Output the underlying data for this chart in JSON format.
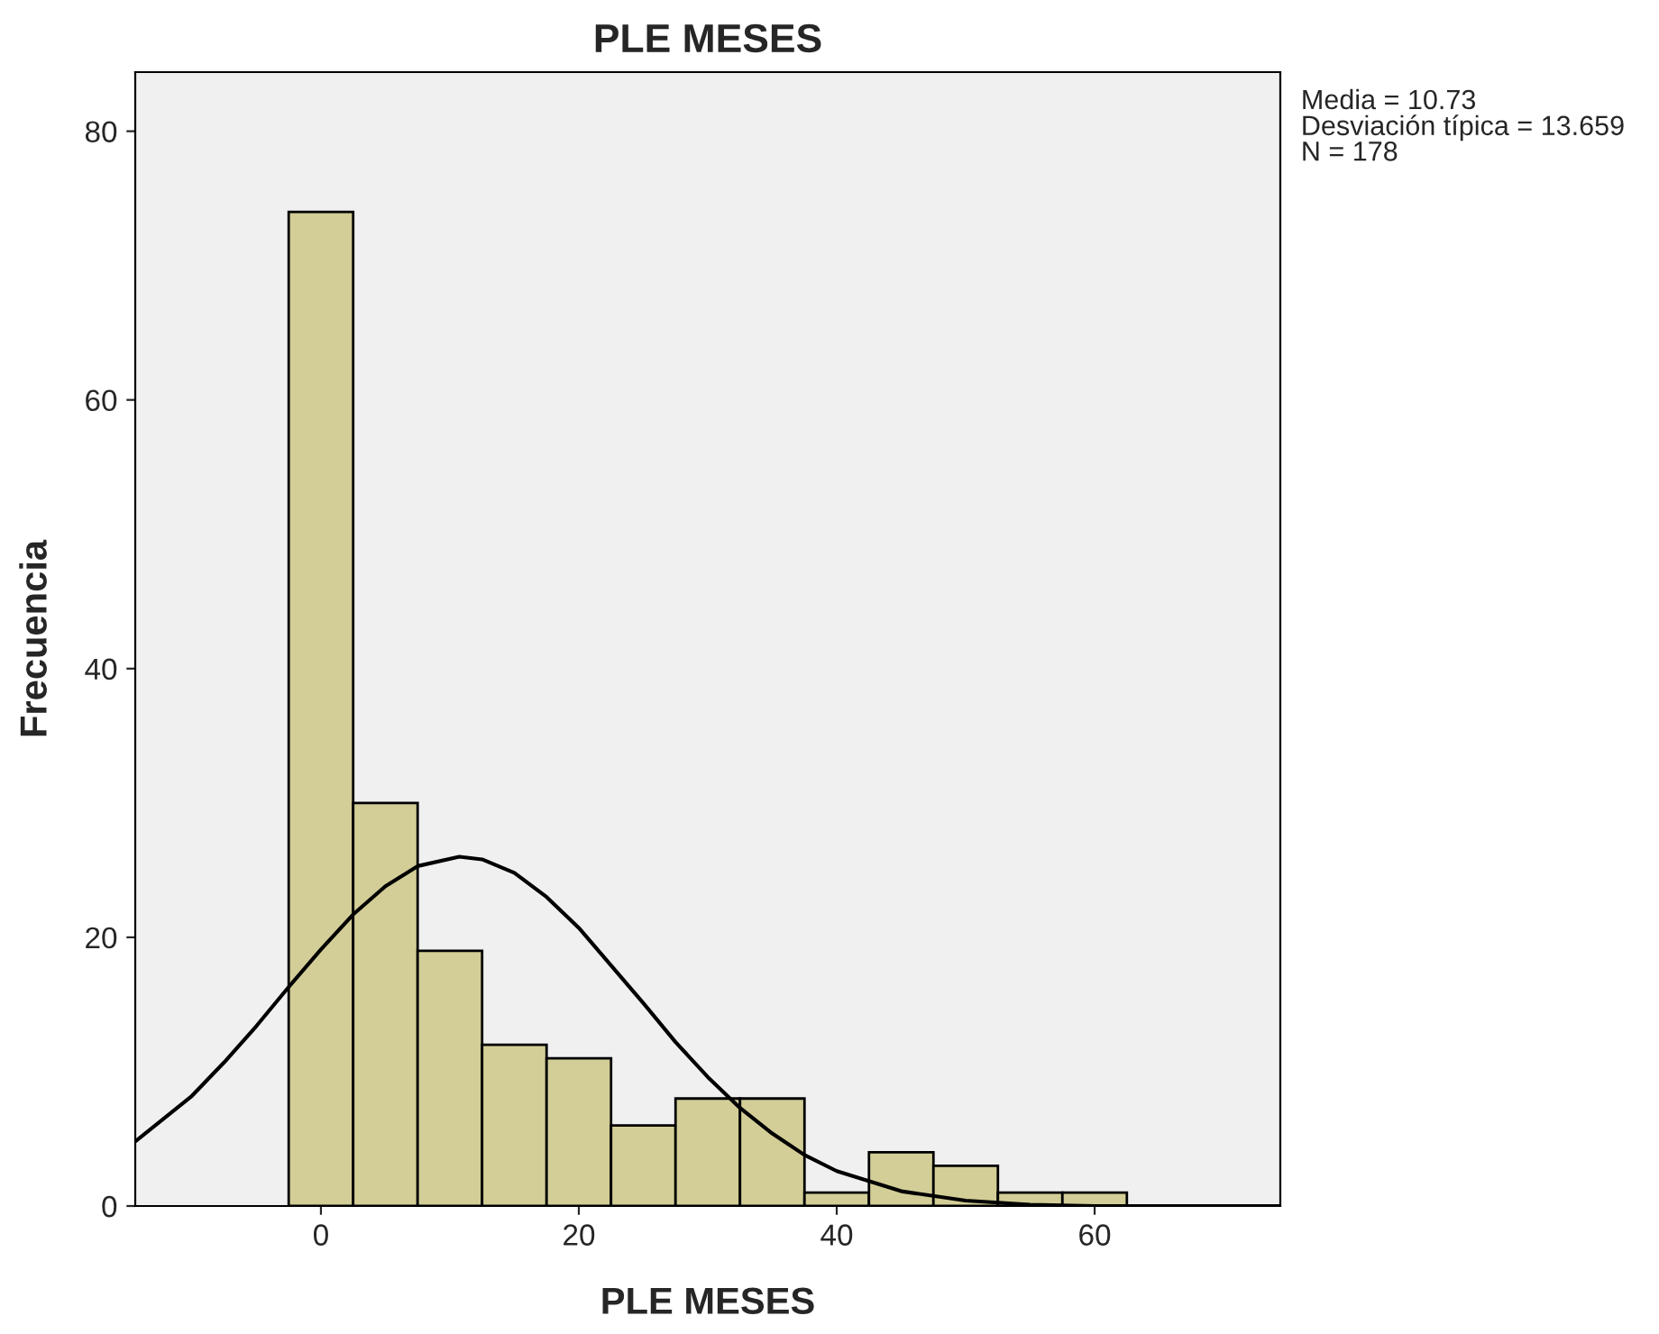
{
  "chart_data": {
    "type": "histogram",
    "title": "PLE MESES",
    "xlabel": "PLE MESES",
    "ylabel": "Frecuencia",
    "bins": [
      -2.5,
      2.5,
      7.5,
      12.5,
      17.5,
      22.5,
      27.5,
      32.5,
      37.5,
      42.5,
      47.5,
      52.5,
      57.5,
      62.5
    ],
    "values": [
      74,
      30,
      19,
      12,
      11,
      6,
      8,
      8,
      1,
      4,
      3,
      1,
      1
    ],
    "color": "#d3ce97",
    "series": [
      {
        "type": "line",
        "color": "#000000",
        "x": [
          -14.4,
          -10,
          -7.5,
          -5,
          -2.5,
          0,
          2.5,
          5,
          7.5,
          10.73,
          12.5,
          15,
          17.5,
          20,
          22.5,
          25,
          27.5,
          30,
          32.5,
          35,
          37.5,
          40,
          45,
          50,
          55,
          60,
          65,
          74.4
        ],
        "values": [
          4.8,
          8.2,
          10.7,
          13.4,
          16.3,
          19.1,
          21.7,
          23.8,
          25.3,
          26.0,
          25.8,
          24.8,
          23.0,
          20.7,
          17.9,
          15.1,
          12.2,
          9.6,
          7.3,
          5.4,
          3.8,
          2.6,
          1.1,
          0.4,
          0.1,
          0.0,
          0.0,
          0.0
        ]
      }
    ],
    "xlim": [
      -14.4,
      74.4
    ],
    "ylim": [
      0,
      84.4
    ],
    "xticks": [
      0,
      20,
      40,
      60
    ],
    "yticks": [
      0,
      20,
      40,
      60,
      80
    ],
    "grid": false,
    "annotations": [
      "Media = 10.73",
      "Desviación típica = 13.659",
      "N = 178"
    ]
  }
}
